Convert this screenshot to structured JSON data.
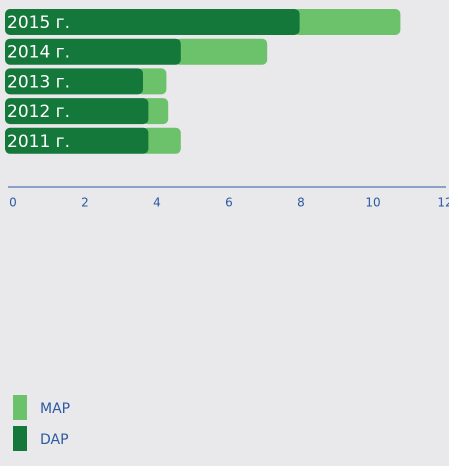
{
  "chart_data": {
    "type": "stacked_barh",
    "categories": [
      "2015 г.",
      "2014 г.",
      "2013 г.",
      "2012 г.",
      "2011 г."
    ],
    "series": [
      {
        "name": "DAP",
        "color": "#13783a",
        "values": [
          8.1,
          4.8,
          3.75,
          3.9,
          3.9
        ]
      },
      {
        "name": "MAP",
        "color": "#6cc16b",
        "values": [
          2.8,
          2.4,
          0.65,
          0.55,
          0.9
        ]
      }
    ],
    "xlim": [
      0,
      12
    ],
    "xticks": [
      0,
      2,
      4,
      6,
      8,
      10,
      12
    ]
  }
}
